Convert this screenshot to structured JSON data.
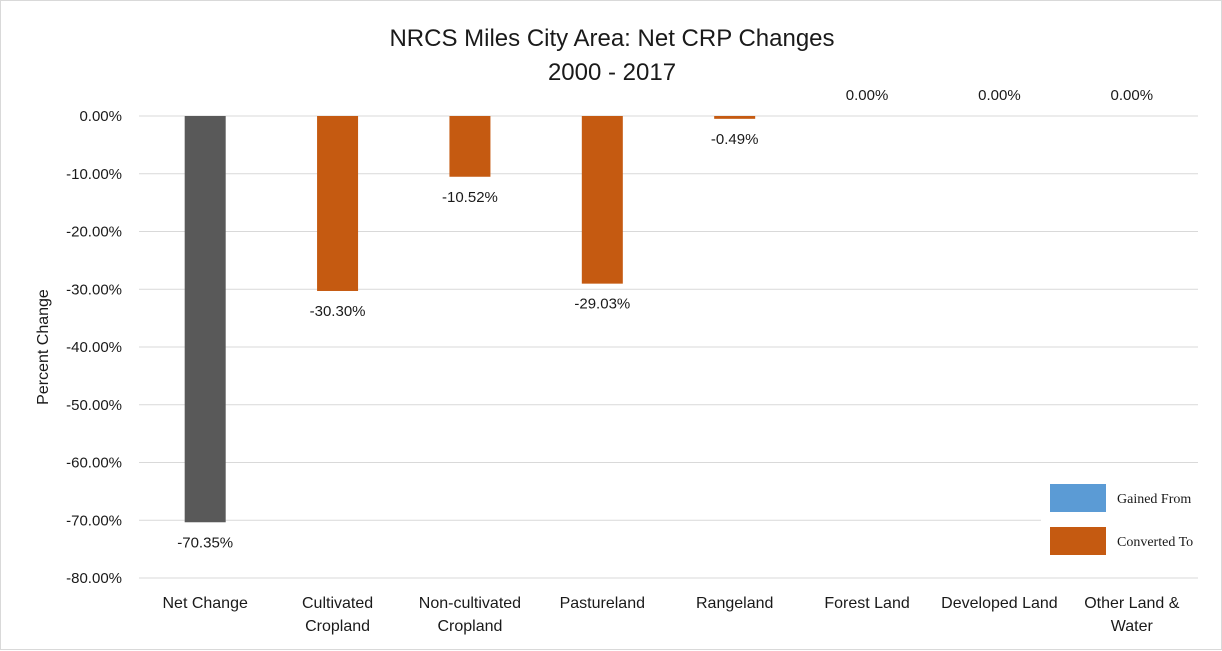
{
  "chart_data": {
    "type": "bar",
    "title": [
      "NRCS Miles City Area: Net CRP Changes",
      "2000 - 2017"
    ],
    "ylabel": "Percent Change",
    "ylim": [
      -80,
      0
    ],
    "yticks": [
      0,
      -10,
      -20,
      -30,
      -40,
      -50,
      -60,
      -70,
      -80
    ],
    "ytick_labels": [
      "0.00%",
      "-10.00%",
      "-20.00%",
      "-30.00%",
      "-40.00%",
      "-50.00%",
      "-60.00%",
      "-70.00%",
      "-80.00%"
    ],
    "grid": true,
    "legend_position": "bottom-right",
    "categories": [
      [
        "Net Change"
      ],
      [
        "Cultivated",
        "Cropland"
      ],
      [
        "Non-cultivated",
        "Cropland"
      ],
      [
        "Pastureland"
      ],
      [
        "Rangeland"
      ],
      [
        "Forest Land"
      ],
      [
        "Developed Land"
      ],
      [
        "Other Land &",
        "Water"
      ]
    ],
    "values": [
      -70.35,
      -30.3,
      -10.52,
      -29.03,
      -0.49,
      0.0,
      0.0,
      0.0
    ],
    "data_labels": [
      "-70.35%",
      "-30.30%",
      "-10.52%",
      "-29.03%",
      "-0.49%",
      "0.00%",
      "0.00%",
      "0.00%"
    ],
    "bar_colors": [
      "#595959",
      "#c55a11",
      "#c55a11",
      "#c55a11",
      "#c55a11",
      "#c55a11",
      "#c55a11",
      "#c55a11"
    ],
    "legend": [
      {
        "name": "Gained From",
        "color": "#5b9bd5"
      },
      {
        "name": "Converted To",
        "color": "#c55a11"
      }
    ]
  }
}
